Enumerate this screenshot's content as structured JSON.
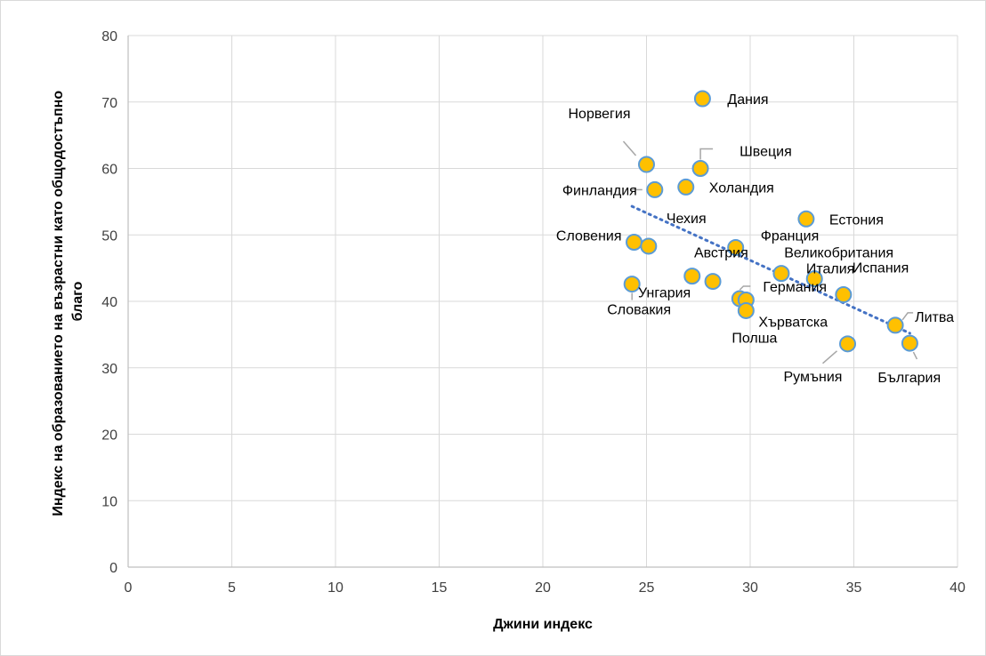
{
  "chart_data": {
    "type": "scatter",
    "title": "",
    "xlabel": "Джини индекс",
    "ylabel_lines": [
      "Индекс на образованието на възрастни като общодостъпно",
      "благо"
    ],
    "xlim": [
      0,
      40
    ],
    "ylim": [
      0,
      80
    ],
    "x_ticks": [
      0,
      5,
      10,
      15,
      20,
      25,
      30,
      35,
      40
    ],
    "y_ticks": [
      0,
      10,
      20,
      30,
      40,
      50,
      60,
      70,
      80
    ],
    "grid": true,
    "legend": "none",
    "points": [
      {
        "label": "Дания",
        "x": 27.7,
        "y": 70.5
      },
      {
        "label": "Норвегия",
        "x": 25.0,
        "y": 60.6
      },
      {
        "label": "Швеция",
        "x": 27.6,
        "y": 60.0
      },
      {
        "label": "Финландия",
        "x": 25.4,
        "y": 56.8
      },
      {
        "label": "Холандия",
        "x": 26.9,
        "y": 57.2
      },
      {
        "label": "Естония",
        "x": 32.7,
        "y": 52.4
      },
      {
        "label": "Словения",
        "x": 24.4,
        "y": 48.9
      },
      {
        "label": "Чехия",
        "x": 25.1,
        "y": 48.3
      },
      {
        "label": "Франция",
        "x": 29.3,
        "y": 48.1
      },
      {
        "label": "Австрия",
        "x": 31.5,
        "y": 44.2
      },
      {
        "label": "Великобритания",
        "x": 33.1,
        "y": 43.4
      },
      {
        "label": "Унгария",
        "x": 28.2,
        "y": 43.0
      },
      {
        "label": "Италия",
        "x": 34.5,
        "y": 41.0
      },
      {
        "label": "Словакия",
        "x": 24.3,
        "y": 42.6
      },
      {
        "label": "Германия",
        "x": 29.5,
        "y": 40.4
      },
      {
        "label": "Хърватска",
        "x": 29.8,
        "y": 40.2
      },
      {
        "label": "Полша",
        "x": 29.8,
        "y": 38.6
      },
      {
        "label": "Испания",
        "x": 27.2,
        "y": 43.8
      },
      {
        "label": "Литва",
        "x": 37.0,
        "y": 36.4
      },
      {
        "label": "Румъния",
        "x": 34.7,
        "y": 33.6
      },
      {
        "label": "България",
        "x": 37.7,
        "y": 33.7
      }
    ],
    "trendline": {
      "type": "linear",
      "x": [
        24.3,
        37.7
      ],
      "y": [
        54.3,
        35.2
      ]
    },
    "colors": {
      "marker_fill": "#ffc000",
      "marker_stroke": "#5b9bd5",
      "trend": "#4472c4",
      "grid": "#d9d9d9",
      "leader": "#a6a6a6"
    }
  }
}
